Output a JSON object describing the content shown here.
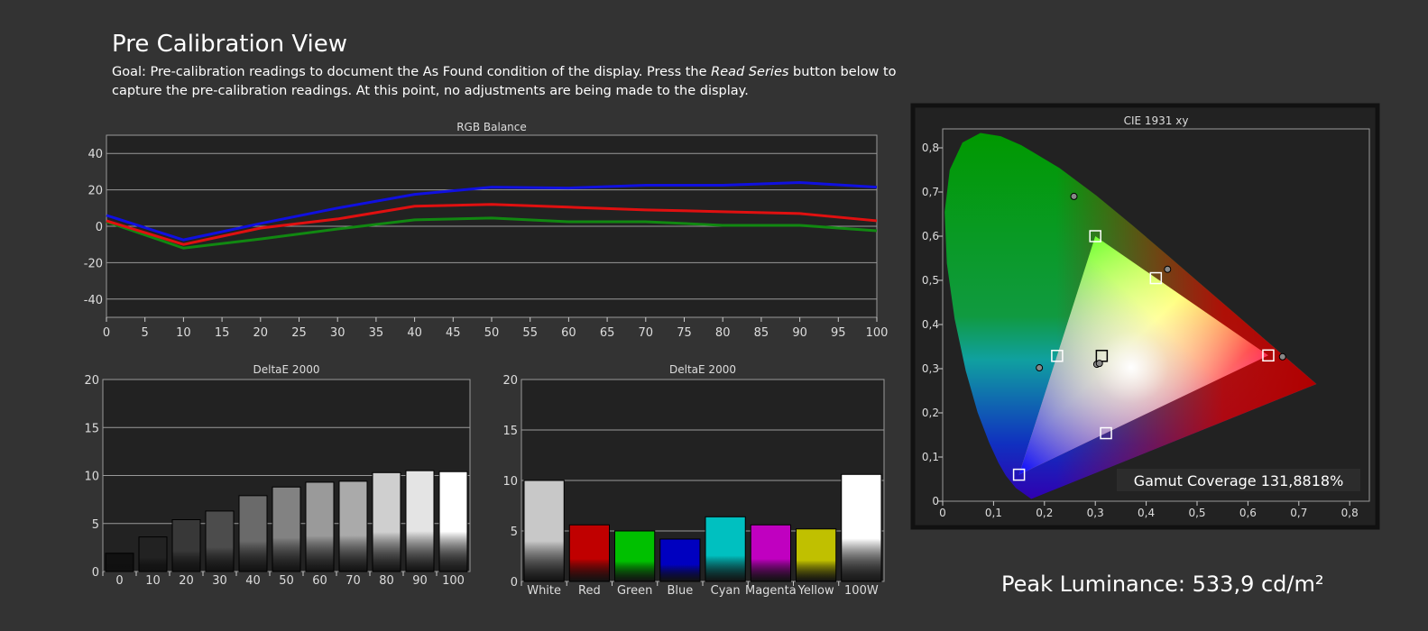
{
  "header": {
    "title": "Pre Calibration View",
    "goal_line1_a": "Goal: Pre-calibration readings to document the As Found condition of the display. Press the ",
    "goal_line1_em": "Read Series",
    "goal_line1_b": " button below to",
    "goal_line2": "capture the pre-calibration readings. At this point, no adjustments are being made to the display."
  },
  "peak_luminance": "Peak Luminance: 533,9 cd/m²",
  "chart_data": [
    {
      "type": "line",
      "title": "RGB Balance",
      "ylim": [
        -50,
        50
      ],
      "yticks": [
        -40,
        -20,
        0,
        20,
        40
      ],
      "x": [
        0,
        10,
        20,
        30,
        40,
        50,
        60,
        70,
        80,
        90,
        100
      ],
      "xticks": [
        0,
        5,
        10,
        15,
        20,
        25,
        30,
        35,
        40,
        45,
        50,
        55,
        60,
        65,
        70,
        75,
        80,
        85,
        90,
        95,
        100
      ],
      "series": [
        {
          "name": "Red",
          "color": "#e01010",
          "values": [
            3,
            -10,
            -1,
            4,
            11,
            12,
            10.5,
            9,
            8,
            7,
            3
          ]
        },
        {
          "name": "Green",
          "color": "#118811",
          "values": [
            2.5,
            -12,
            -7,
            -1.5,
            3.5,
            4.5,
            2.5,
            2.5,
            0.5,
            0.5,
            -2.5
          ]
        },
        {
          "name": "Blue",
          "color": "#1010e0",
          "values": [
            6,
            -7.5,
            1.5,
            10,
            17.5,
            21.5,
            21,
            22.5,
            22.5,
            24,
            21.5
          ]
        }
      ]
    },
    {
      "type": "bar",
      "title": "DeltaE 2000",
      "ylim": [
        0,
        20
      ],
      "yticks": [
        0,
        5,
        10,
        15,
        20
      ],
      "categories": [
        "0",
        "10",
        "20",
        "30",
        "40",
        "50",
        "60",
        "70",
        "80",
        "90",
        "100"
      ],
      "values": [
        1.9,
        3.6,
        5.4,
        6.3,
        7.9,
        8.8,
        9.3,
        9.4,
        10.3,
        10.5,
        10.4
      ],
      "colors": [
        "#111111",
        "#222222",
        "#383838",
        "#4c4c4c",
        "#6a6a6a",
        "#828282",
        "#9a9a9a",
        "#aaaaaa",
        "#cfcfcf",
        "#e4e4e4",
        "#ffffff"
      ]
    },
    {
      "type": "bar",
      "title": "DeltaE 2000",
      "ylim": [
        0,
        20
      ],
      "yticks": [
        0,
        5,
        10,
        15,
        20
      ],
      "categories": [
        "White",
        "Red",
        "Green",
        "Blue",
        "Cyan",
        "Magenta",
        "Yellow",
        "100W"
      ],
      "values": [
        10.0,
        5.6,
        5.0,
        4.2,
        6.4,
        5.6,
        5.2,
        10.6
      ],
      "colors": [
        "#c8c8c8",
        "#c00000",
        "#00c000",
        "#0000c0",
        "#00c0c0",
        "#c000c0",
        "#c0c000",
        "#ffffff"
      ]
    },
    {
      "type": "scatter",
      "title": "CIE 1931 xy",
      "xlim": [
        0,
        0.84
      ],
      "ylim": [
        0,
        0.843
      ],
      "xticks": [
        "0",
        "0,1",
        "0,2",
        "0,3",
        "0,4",
        "0,5",
        "0,6",
        "0,7",
        "0,8"
      ],
      "yticks": [
        "0",
        "0,1",
        "0,2",
        "0,3",
        "0,4",
        "0,5",
        "0,6",
        "0,7",
        "0,8"
      ],
      "gamut": [
        [
          0.64,
          0.33
        ],
        [
          0.3,
          0.6
        ],
        [
          0.15,
          0.06
        ]
      ],
      "targets": [
        [
          0.64,
          0.33
        ],
        [
          0.3,
          0.6
        ],
        [
          0.15,
          0.06
        ],
        [
          0.3127,
          0.329
        ],
        [
          0.225,
          0.329
        ],
        [
          0.321,
          0.154
        ],
        [
          0.419,
          0.505
        ]
      ],
      "measured": [
        [
          0.668,
          0.327
        ],
        [
          0.258,
          0.69
        ],
        [
          0.19,
          0.302
        ],
        [
          0.442,
          0.525
        ],
        [
          0.303,
          0.31
        ],
        [
          0.308,
          0.312
        ]
      ],
      "gamut_coverage": "Gamut Coverage 131,8818%"
    }
  ]
}
